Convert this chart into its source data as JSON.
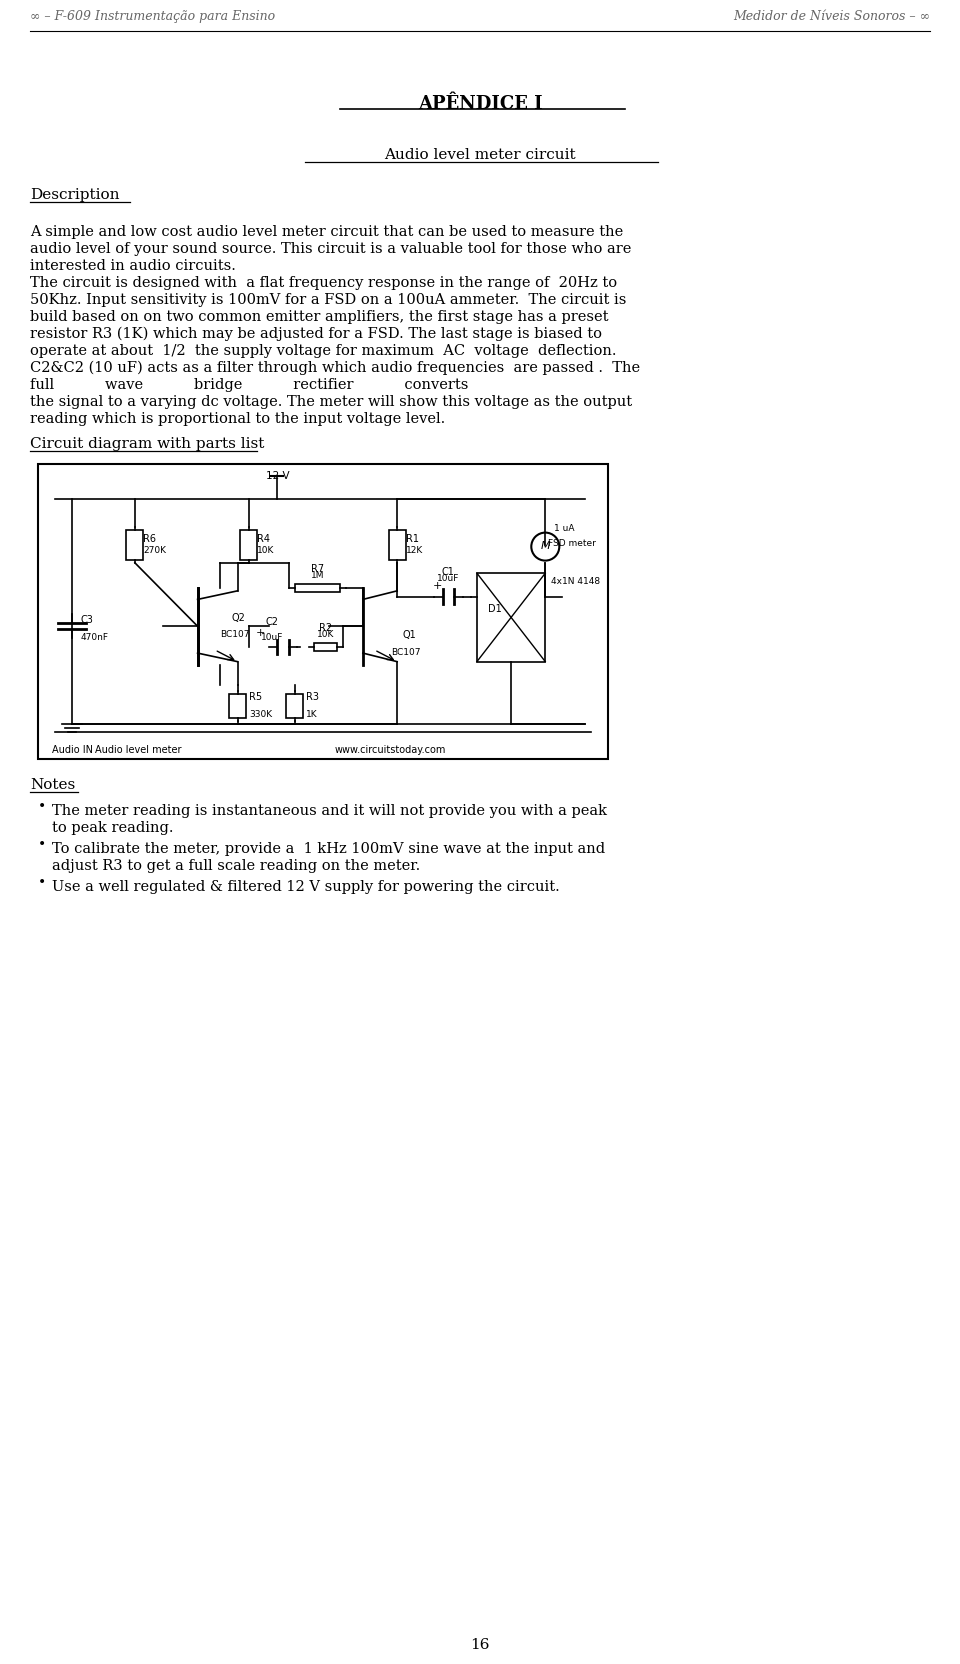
{
  "bg_color": "#ffffff",
  "header_left": "∞ – F-609 Instrumentação para Ensino",
  "header_right": "Medidor de Níveis Sonoros – ∞",
  "page_number": "16",
  "title": "APÊNDICE I",
  "subtitle": "Audio level meter circuit",
  "section_description": "Description",
  "p1_lines": [
    "A simple and low cost audio level meter circuit that can be used to measure the",
    "audio level of your sound source. This circuit is a valuable tool for those who are",
    "interested in audio circuits."
  ],
  "p2_lines": [
    "The circuit is designed with  a flat frequency response in the range of  20Hz to",
    "50Khz. Input sensitivity is 100mV for a FSD on a 100uA ammeter.  The circuit is",
    "build based on on two common emitter amplifiers, the first stage has a preset",
    "resistor R3 (1K) which may be adjusted for a FSD. The last stage is biased to",
    "operate at about  1/2  the supply voltage for maximum  AC  voltage  deflection.",
    "C2&C2 (10 uF) acts as a filter through which audio frequencies  are passed .  The",
    "full           wave           bridge           rectifier           converts",
    "the signal to a varying dc voltage. The meter will show this voltage as the output",
    "reading which is proportional to the input voltage level."
  ],
  "section_circuit": "Circuit diagram with parts list",
  "section_notes": "Notes",
  "note_lines": [
    [
      "The meter reading is instantaneous and it will not provide you with a peak",
      "to peak reading."
    ],
    [
      "To calibrate the meter, provide a  1 kHz 100mV sine wave at the input and",
      "adjust R3 to get a full scale reading on the meter."
    ],
    [
      "Use a well regulated & filtered 12 V supply for powering the circuit."
    ]
  ],
  "font_color": "#000000",
  "header_font_size": 9,
  "title_font_size": 13,
  "subtitle_font_size": 11,
  "body_font_size": 10.5,
  "section_font_size": 11
}
